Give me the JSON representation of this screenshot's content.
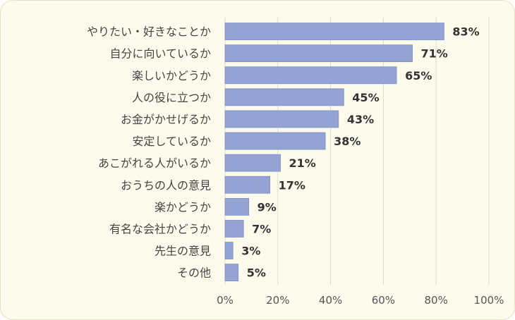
{
  "chart_data": {
    "type": "bar",
    "orientation": "horizontal",
    "title": "",
    "xlabel": "",
    "ylabel": "",
    "categories": [
      "やりたい・好きなことか",
      "自分に向いているか",
      "楽しいかどうか",
      "人の役に立つか",
      "お金がかせげるか",
      "安定しているか",
      "あこがれる人がいるか",
      "おうちの人の意見",
      "楽かどうか",
      "有名な会社かどうか",
      "先生の意見",
      "その他"
    ],
    "values": [
      83,
      71,
      65,
      45,
      43,
      38,
      21,
      17,
      9,
      7,
      3,
      5
    ],
    "value_labels": [
      "83%",
      "71%",
      "65%",
      "45%",
      "43%",
      "38%",
      "21%",
      "17%",
      "9%",
      "7%",
      "3%",
      "5%"
    ],
    "xlim": [
      0,
      100
    ],
    "x_ticks": [
      0,
      20,
      40,
      60,
      80,
      100
    ],
    "x_tick_labels": [
      "0%",
      "20%",
      "40%",
      "60%",
      "80%",
      "100%"
    ],
    "grid": true,
    "legend": "none",
    "colors": {
      "bar": "#95a3d4",
      "bar_edge": "#7f8fc6",
      "grid": "#dcd9c8",
      "background": "#fdfbeb"
    }
  }
}
